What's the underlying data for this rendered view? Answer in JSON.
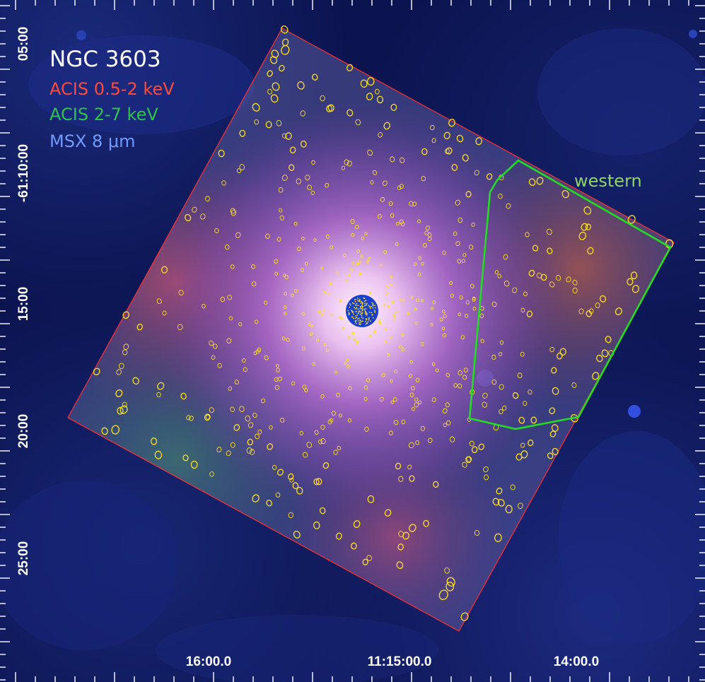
{
  "figure": {
    "target": "NGC 3603",
    "bands": [
      {
        "label": "ACIS 0.5-2 keV",
        "color": "#ff4a3c"
      },
      {
        "label": "ACIS 2-7 keV",
        "color": "#2fc24c"
      },
      {
        "label": "MSX 8 μm",
        "color": "#6f9bff"
      }
    ],
    "region_label": "western",
    "region_color": "#22dd22",
    "footprint_color": "#ff3030",
    "source_color": "#ffe020",
    "core_color": "#1a3fcc"
  },
  "axes": {
    "ra_ticks": [
      "16:00.0",
      "11:15:00.0",
      "14:00.0"
    ],
    "dec_ticks": [
      "05:00",
      "-61:10:00",
      "15:00",
      "20:00",
      "25:00"
    ]
  }
}
